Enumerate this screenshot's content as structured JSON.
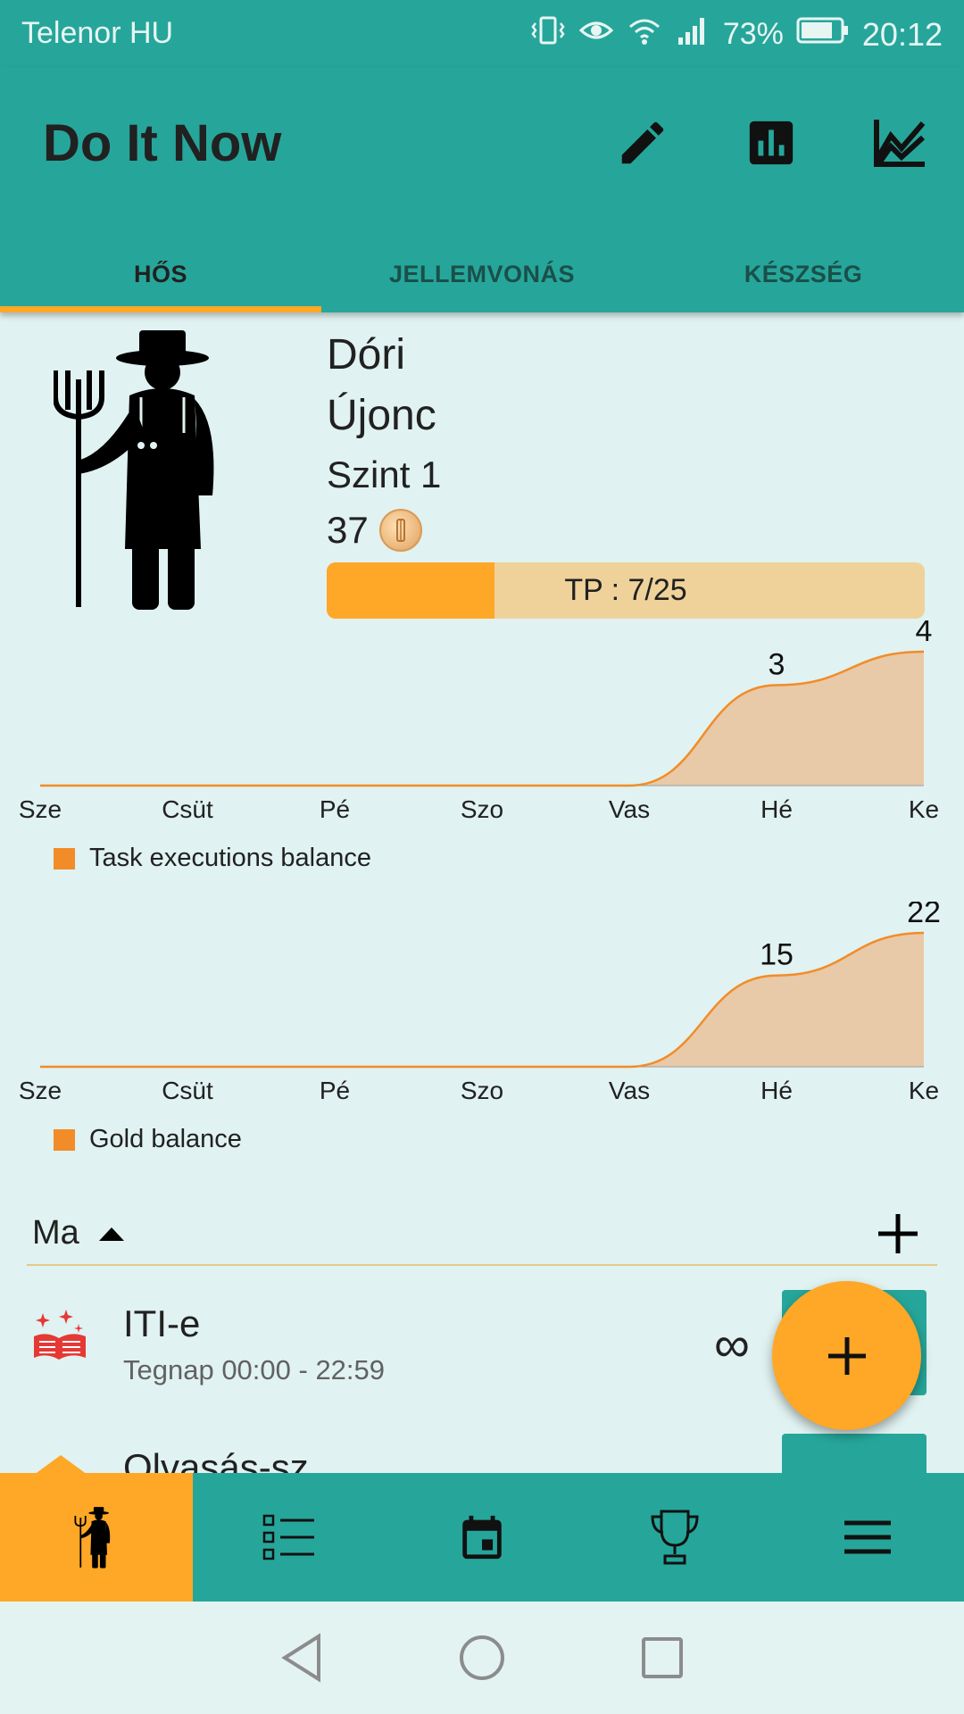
{
  "status_bar": {
    "carrier": "Telenor HU",
    "battery": "73%",
    "time": "20:12"
  },
  "app_bar": {
    "title": "Do It Now",
    "actions": [
      {
        "icon": "pencil-icon"
      },
      {
        "icon": "bar-chart-icon"
      },
      {
        "icon": "line-chart-icon"
      }
    ]
  },
  "tabs": [
    {
      "label": "HŐS",
      "active": true
    },
    {
      "label": "JELLEMVONÁS",
      "active": false
    },
    {
      "label": "KÉSZSÉG",
      "active": false
    }
  ],
  "hero": {
    "name": "Dóri",
    "rank": "Újonc",
    "level": "Szint 1",
    "gold": "37",
    "xp_label": "TP : 7/25",
    "xp_fraction": 0.28
  },
  "chart_data": [
    {
      "type": "area",
      "categories": [
        "Sze",
        "Csüt",
        "Pé",
        "Szo",
        "Vas",
        "Hé",
        "Ke"
      ],
      "values": [
        0,
        0,
        0,
        0,
        0,
        3,
        4
      ],
      "data_labels": [
        "",
        "",
        "",
        "",
        "",
        "3",
        "4"
      ],
      "legend": "Task executions balance",
      "ylim": [
        0,
        4
      ],
      "color": "#f28c28"
    },
    {
      "type": "area",
      "categories": [
        "Sze",
        "Csüt",
        "Pé",
        "Szo",
        "Vas",
        "Hé",
        "Ke"
      ],
      "values": [
        0,
        0,
        0,
        0,
        0,
        15,
        22
      ],
      "data_labels": [
        "",
        "",
        "",
        "",
        "",
        "15",
        "22"
      ],
      "legend": "Gold balance",
      "ylim": [
        0,
        22
      ],
      "color": "#f28c28"
    }
  ],
  "today_section": {
    "label": "Ma"
  },
  "tasks": [
    {
      "name": "ITI-e",
      "time": "Tegnap 00:00 - 22:59",
      "repeat": "∞",
      "icon": "book-icon"
    },
    {
      "name": "Olvasás-sz"
    }
  ],
  "bottom_nav": [
    {
      "icon": "hero-icon",
      "active": true
    },
    {
      "icon": "checklist-icon",
      "active": false
    },
    {
      "icon": "calendar-icon",
      "active": false
    },
    {
      "icon": "trophy-icon",
      "active": false
    },
    {
      "icon": "menu-icon",
      "active": false
    }
  ],
  "colors": {
    "primary": "#26a69a",
    "accent": "#ffa726",
    "background": "#e0f2f1",
    "chart_fill": "#e8c9a8"
  }
}
